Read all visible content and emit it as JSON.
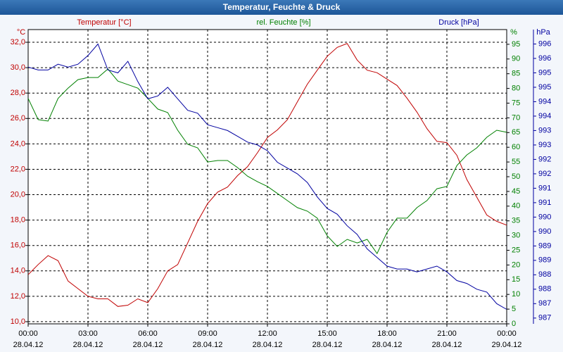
{
  "chart_data": {
    "type": "line",
    "title": "Temperatur, Feuchte & Druck",
    "y_label": "°C",
    "y2_label": "%",
    "y3_label": "hPa",
    "x": [
      0,
      0.5,
      1,
      1.5,
      2,
      2.5,
      3,
      3.5,
      4,
      4.5,
      5,
      5.5,
      6,
      6.5,
      7,
      7.5,
      8,
      8.5,
      9,
      9.5,
      10,
      10.5,
      11,
      11.5,
      12,
      12.5,
      13,
      13.5,
      14,
      14.5,
      15,
      15.5,
      16,
      16.5,
      17,
      17.5,
      18,
      18.5,
      19,
      19.5,
      20,
      20.5,
      21,
      21.5,
      22,
      22.5,
      23,
      23.5,
      24
    ],
    "xlim": [
      0,
      24
    ],
    "xticks": [
      {
        "value": 0,
        "label": "00:00",
        "date": "28.04.12"
      },
      {
        "value": 3,
        "label": "03:00",
        "date": "28.04.12"
      },
      {
        "value": 6,
        "label": "06:00",
        "date": "28.04.12"
      },
      {
        "value": 9,
        "label": "09:00",
        "date": "28.04.12"
      },
      {
        "value": 12,
        "label": "12:00",
        "date": "28.04.12"
      },
      {
        "value": 15,
        "label": "15:00",
        "date": "28.04.12"
      },
      {
        "value": 18,
        "label": "18:00",
        "date": "28.04.12"
      },
      {
        "value": 21,
        "label": "21:00",
        "date": "28.04.12"
      },
      {
        "value": 24,
        "label": "00:00",
        "date": "29.04.12"
      }
    ],
    "ylim": [
      9.83,
      33.0
    ],
    "yticks": [
      {
        "value": 10,
        "label": "10,0"
      },
      {
        "value": 12,
        "label": "12,0"
      },
      {
        "value": 14,
        "label": "14,0"
      },
      {
        "value": 16,
        "label": "16,0"
      },
      {
        "value": 18,
        "label": "18,0"
      },
      {
        "value": 20,
        "label": "20,0"
      },
      {
        "value": 22,
        "label": "22,0"
      },
      {
        "value": 24,
        "label": "24,0"
      },
      {
        "value": 26,
        "label": "26,0"
      },
      {
        "value": 28,
        "label": "28,0"
      },
      {
        "value": 30,
        "label": "30,0"
      },
      {
        "value": 32,
        "label": "32,0"
      }
    ],
    "y2lim": [
      0,
      100
    ],
    "y2ticks": [
      0,
      5,
      10,
      15,
      20,
      25,
      30,
      35,
      40,
      45,
      50,
      55,
      60,
      65,
      70,
      75,
      80,
      85,
      90,
      95
    ],
    "y3lim": [
      986.4,
      996.6
    ],
    "y3ticks": [
      {
        "value": 986.6,
        "label": "987"
      },
      {
        "value": 987.1,
        "label": "987"
      },
      {
        "value": 987.6,
        "label": "988"
      },
      {
        "value": 988.1,
        "label": "988"
      },
      {
        "value": 988.6,
        "label": "989"
      },
      {
        "value": 989.1,
        "label": "989"
      },
      {
        "value": 989.6,
        "label": "990"
      },
      {
        "value": 990.1,
        "label": "990"
      },
      {
        "value": 990.6,
        "label": "991"
      },
      {
        "value": 991.1,
        "label": "991"
      },
      {
        "value": 991.6,
        "label": "992"
      },
      {
        "value": 992.1,
        "label": "992"
      },
      {
        "value": 992.6,
        "label": "993"
      },
      {
        "value": 993.1,
        "label": "993"
      },
      {
        "value": 993.6,
        "label": "994"
      },
      {
        "value": 994.1,
        "label": "994"
      },
      {
        "value": 994.6,
        "label": "995"
      },
      {
        "value": 995.1,
        "label": "995"
      },
      {
        "value": 995.6,
        "label": "996"
      },
      {
        "value": 996.1,
        "label": "996"
      }
    ],
    "grid": true,
    "series": [
      {
        "name": "Temperatur [°C]",
        "color": "#c00000",
        "axis": "y",
        "values": [
          13.7,
          14.5,
          15.2,
          14.8,
          13.2,
          12.6,
          12.0,
          11.8,
          11.8,
          11.2,
          11.3,
          11.8,
          11.5,
          12.6,
          14.0,
          14.5,
          16.2,
          17.9,
          19.3,
          20.2,
          20.6,
          21.5,
          22.2,
          23.3,
          24.5,
          25.1,
          25.9,
          27.3,
          28.7,
          29.8,
          30.9,
          31.6,
          31.9,
          30.6,
          29.8,
          29.6,
          29.1,
          28.6,
          27.6,
          26.5,
          25.2,
          24.2,
          24.1,
          23.1,
          21.2,
          19.8,
          18.4,
          17.9,
          17.6
        ]
      },
      {
        "name": "rel. Feuchte [%]",
        "color": "#008000",
        "axis": "y2",
        "values": [
          76.6,
          69.4,
          68.9,
          76.6,
          80.1,
          83.0,
          83.7,
          83.7,
          86.6,
          82.5,
          81.3,
          80.1,
          76.6,
          73.0,
          71.8,
          65.8,
          61.0,
          59.8,
          55.0,
          55.5,
          55.5,
          53.1,
          50.2,
          48.3,
          46.7,
          44.3,
          41.9,
          39.5,
          38.3,
          35.9,
          29.9,
          26.3,
          28.7,
          27.5,
          28.7,
          23.9,
          31.1,
          35.9,
          35.9,
          39.5,
          41.9,
          45.9,
          46.7,
          53.8,
          57.4,
          59.8,
          63.4,
          65.8,
          65.1
        ]
      },
      {
        "name": "Druck [hPa]",
        "color": "#0000a0",
        "axis": "y3",
        "values": [
          995.3,
          995.2,
          995.2,
          995.4,
          995.3,
          995.4,
          995.7,
          996.1,
          995.2,
          995.1,
          995.5,
          994.8,
          994.2,
          994.3,
          994.6,
          994.2,
          993.8,
          993.7,
          993.3,
          993.2,
          993.1,
          992.9,
          992.7,
          992.6,
          992.4,
          992.0,
          991.8,
          991.6,
          991.3,
          990.8,
          990.4,
          990.2,
          989.8,
          989.5,
          989.0,
          988.7,
          988.4,
          988.3,
          988.3,
          988.2,
          988.3,
          988.4,
          988.2,
          987.9,
          987.8,
          987.6,
          987.5,
          987.1,
          986.9
        ]
      }
    ]
  }
}
